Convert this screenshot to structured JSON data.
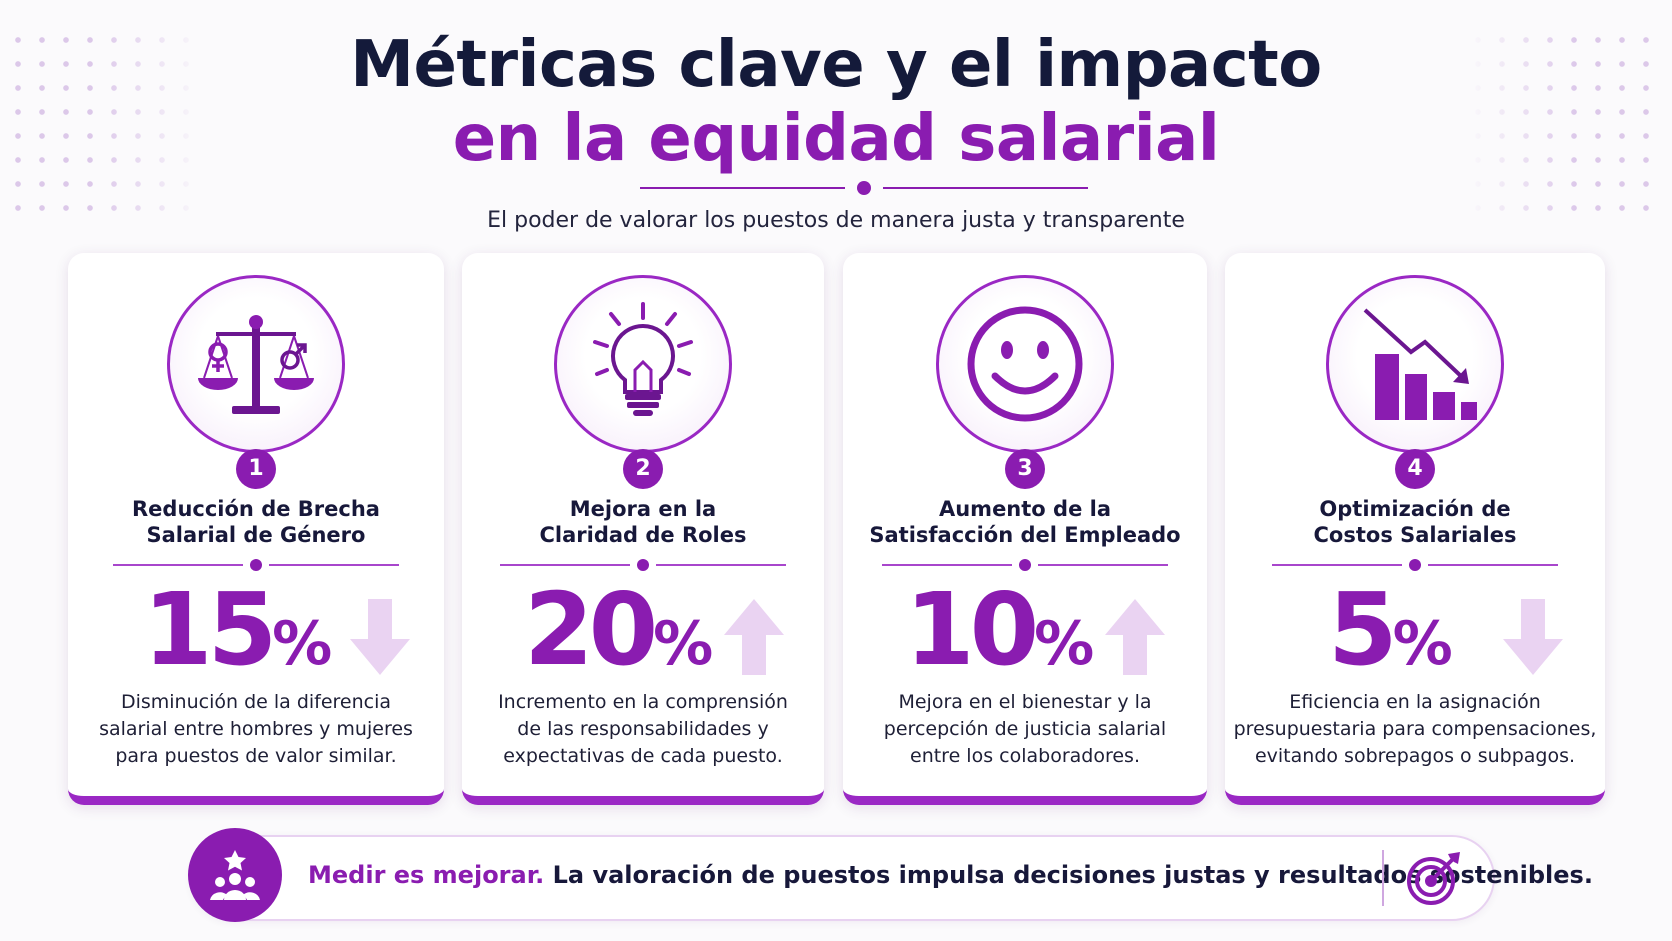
{
  "header": {
    "title_line1": "Métricas clave y el impacto",
    "title_line2": "en la equidad salarial",
    "subtitle": "El poder de valorar los puestos de manera justa y transparente"
  },
  "colors": {
    "accent": "#8a1cb0",
    "dark": "#141a3a",
    "arrow_light": "#ead3f2"
  },
  "cards": [
    {
      "number": "1",
      "title_line1": "Reducción de Brecha",
      "title_line2": "Salarial de Género",
      "value": "15",
      "unit": "%",
      "trend": "down",
      "icon": "balance-scale-gender-icon",
      "desc_line1": "Disminución de la diferencia",
      "desc_line2": "salarial entre hombres y mujeres",
      "desc_line3": "para puestos de valor similar."
    },
    {
      "number": "2",
      "title_line1": "Mejora en la",
      "title_line2": "Claridad de Roles",
      "value": "20",
      "unit": "%",
      "trend": "up",
      "icon": "lightbulb-icon",
      "desc_line1": "Incremento en la comprensión",
      "desc_line2": "de las responsabilidades y",
      "desc_line3": "expectativas de cada puesto."
    },
    {
      "number": "3",
      "title_line1": "Aumento de la",
      "title_line2": "Satisfacción del Empleado",
      "value": "10",
      "unit": "%",
      "trend": "up",
      "icon": "smiley-face-icon",
      "desc_line1": "Mejora en el bienestar y la",
      "desc_line2": "percepción de justicia salarial",
      "desc_line3": "entre los colaboradores."
    },
    {
      "number": "4",
      "title_line1": "Optimización de",
      "title_line2": "Costos Salariales",
      "value": "5",
      "unit": "%",
      "trend": "down",
      "icon": "declining-bar-chart-icon",
      "desc_line1": "Eficiencia en la asignación",
      "desc_line2": "presupuestaria para compensaciones,",
      "desc_line3": "evitando sobrepagos o subpagos."
    }
  ],
  "footer": {
    "highlight": "Medir es mejorar.",
    "text": " La valoración de puestos impulsa decisiones justas y resultados sostenibles.",
    "left_icon": "team-star-icon",
    "right_icon": "target-arrow-icon"
  }
}
